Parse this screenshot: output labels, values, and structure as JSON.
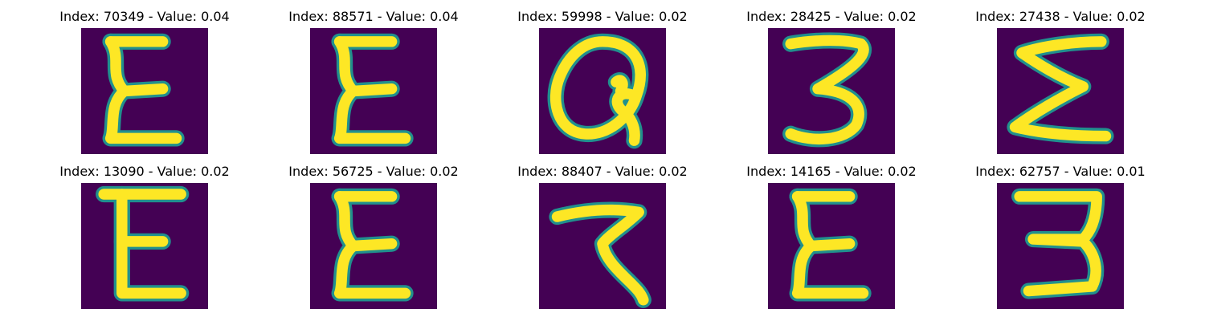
{
  "figure": {
    "colormap": "viridis",
    "background": "#ffffff"
  },
  "chart_data": {
    "type": "image-grid",
    "rows": 2,
    "cols": 5,
    "colors": {
      "low": "#440154",
      "mid": "#21908d",
      "high": "#fde725"
    },
    "panels": [
      {
        "title": "Index: 70349 - Value: 0.04",
        "index": 70349,
        "value": 0.04,
        "glyph": "epsilon"
      },
      {
        "title": "Index: 88571 - Value: 0.04",
        "index": 88571,
        "value": 0.04,
        "glyph": "epsilon"
      },
      {
        "title": "Index: 59998 - Value: 0.02",
        "index": 59998,
        "value": 0.02,
        "glyph": "loop"
      },
      {
        "title": "Index: 28425 - Value: 0.02",
        "index": 28425,
        "value": 0.02,
        "glyph": "three"
      },
      {
        "title": "Index: 27438 - Value: 0.02",
        "index": 27438,
        "value": 0.02,
        "glyph": "sigma"
      },
      {
        "title": "Index: 13090 - Value: 0.02",
        "index": 13090,
        "value": 0.02,
        "glyph": "E"
      },
      {
        "title": "Index: 56725 - Value: 0.02",
        "index": 56725,
        "value": 0.02,
        "glyph": "epsilon"
      },
      {
        "title": "Index: 88407 - Value: 0.02",
        "index": 88407,
        "value": 0.02,
        "glyph": "seven"
      },
      {
        "title": "Index: 14165 - Value: 0.02",
        "index": 14165,
        "value": 0.02,
        "glyph": "epsilon"
      },
      {
        "title": "Index: 62757 - Value: 0.01",
        "index": 62757,
        "value": 0.01,
        "glyph": "three-block"
      }
    ]
  }
}
